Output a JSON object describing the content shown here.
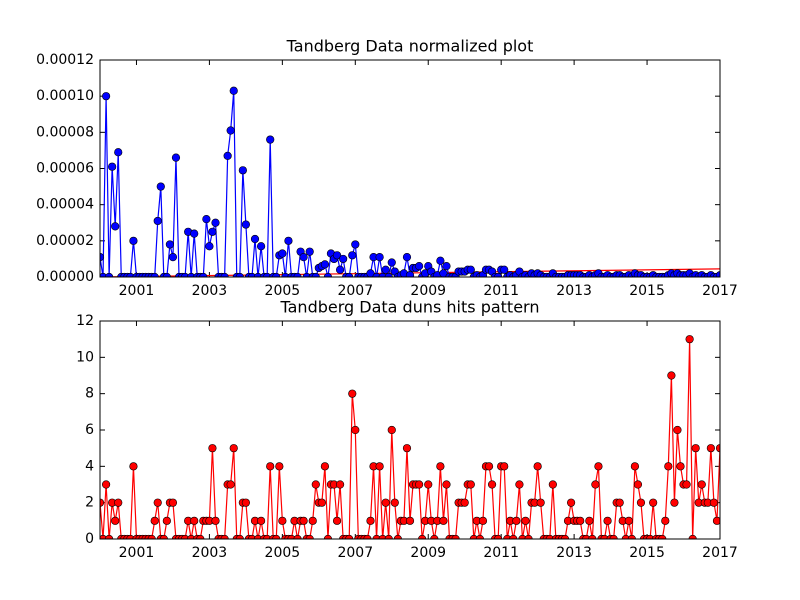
{
  "chart_data": [
    {
      "type": "line",
      "title": "Tandberg Data normalized plot",
      "x": [
        2000,
        2000.083,
        2000.167,
        2000.25,
        2000.333,
        2000.417,
        2000.5,
        2000.583,
        2000.667,
        2000.75,
        2000.833,
        2000.917,
        2001,
        2001.083,
        2001.167,
        2001.25,
        2001.333,
        2001.417,
        2001.5,
        2001.583,
        2001.667,
        2001.75,
        2001.833,
        2001.917,
        2002,
        2002.083,
        2002.167,
        2002.25,
        2002.333,
        2002.417,
        2002.5,
        2002.583,
        2002.667,
        2002.75,
        2002.833,
        2002.917,
        2003,
        2003.083,
        2003.167,
        2003.25,
        2003.333,
        2003.417,
        2003.5,
        2003.583,
        2003.667,
        2003.75,
        2003.833,
        2003.917,
        2004,
        2004.083,
        2004.167,
        2004.25,
        2004.333,
        2004.417,
        2004.5,
        2004.583,
        2004.667,
        2004.75,
        2004.833,
        2004.917,
        2005,
        2005.083,
        2005.167,
        2005.25,
        2005.333,
        2005.417,
        2005.5,
        2005.583,
        2005.667,
        2005.75,
        2005.833,
        2005.917,
        2006,
        2006.083,
        2006.167,
        2006.25,
        2006.333,
        2006.417,
        2006.5,
        2006.583,
        2006.667,
        2006.75,
        2006.833,
        2006.917,
        2007,
        2007.083,
        2007.167,
        2007.25,
        2007.333,
        2007.417,
        2007.5,
        2007.583,
        2007.667,
        2007.75,
        2007.833,
        2007.917,
        2008,
        2008.083,
        2008.167,
        2008.25,
        2008.333,
        2008.417,
        2008.5,
        2008.583,
        2008.667,
        2008.75,
        2008.833,
        2008.917,
        2009,
        2009.083,
        2009.167,
        2009.25,
        2009.333,
        2009.417,
        2009.5,
        2009.583,
        2009.667,
        2009.75,
        2009.833,
        2009.917,
        2010,
        2010.083,
        2010.167,
        2010.25,
        2010.333,
        2010.417,
        2010.5,
        2010.583,
        2010.667,
        2010.75,
        2010.833,
        2010.917,
        2011,
        2011.083,
        2011.167,
        2011.25,
        2011.333,
        2011.417,
        2011.5,
        2011.583,
        2011.667,
        2011.75,
        2011.833,
        2011.917,
        2012,
        2012.083,
        2012.167,
        2012.25,
        2012.333,
        2012.417,
        2012.5,
        2012.583,
        2012.667,
        2012.75,
        2012.833,
        2012.917,
        2013,
        2013.083,
        2013.167,
        2013.25,
        2013.333,
        2013.417,
        2013.5,
        2013.583,
        2013.667,
        2013.75,
        2013.833,
        2013.917,
        2014,
        2014.083,
        2014.167,
        2014.25,
        2014.333,
        2014.417,
        2014.5,
        2014.583,
        2014.667,
        2014.75,
        2014.833,
        2014.917,
        2015,
        2015.083,
        2015.167,
        2015.25,
        2015.333,
        2015.417,
        2015.5,
        2015.583,
        2015.667,
        2015.75,
        2015.833,
        2015.917,
        2016,
        2016.083,
        2016.167,
        2016.25,
        2016.333,
        2016.417,
        2016.5,
        2016.583,
        2016.667,
        2016.75,
        2016.833,
        2016.917,
        2017
      ],
      "series": [
        {
          "color": "#0000ff",
          "values": [
            1.1e-05,
            0,
            0.0001,
            0,
            6.1e-05,
            2.8e-05,
            6.9e-05,
            0,
            0,
            0,
            0,
            2e-05,
            0,
            0,
            0,
            0,
            0,
            0,
            0,
            3.1e-05,
            5e-05,
            0,
            0,
            1.8e-05,
            1.1e-05,
            6.6e-05,
            0,
            0,
            0,
            2.5e-05,
            0,
            2.4e-05,
            0,
            0,
            0,
            3.2e-05,
            1.7e-05,
            2.5e-05,
            3e-05,
            0,
            0,
            0,
            6.7e-05,
            8.1e-05,
            0.000103,
            0,
            0,
            5.9e-05,
            2.9e-05,
            0,
            0,
            2.1e-05,
            0,
            1.7e-05,
            0,
            0,
            7.6e-05,
            0,
            0,
            1.2e-05,
            1.3e-05,
            0,
            2e-05,
            0,
            0,
            0,
            1.4e-05,
            1.1e-05,
            0,
            1.4e-05,
            0,
            0,
            5e-06,
            6e-06,
            7e-06,
            0,
            1.3e-05,
            1e-05,
            1.2e-05,
            4e-06,
            1e-05,
            0,
            0,
            1.2e-05,
            1.8e-05,
            0,
            0,
            0,
            0,
            2e-06,
            1.1e-05,
            0,
            1.1e-05,
            0,
            4e-06,
            0,
            8e-06,
            3e-06,
            0,
            1e-06,
            2e-06,
            1.1e-05,
            1e-06,
            5e-06,
            5e-06,
            6e-06,
            0,
            2e-06,
            6e-06,
            3e-06,
            0,
            1e-06,
            9e-06,
            2e-06,
            6e-06,
            0,
            0,
            0,
            3e-06,
            3e-06,
            3e-06,
            4e-06,
            4e-06,
            0,
            1e-06,
            0,
            1e-06,
            4e-06,
            4e-06,
            3e-06,
            0,
            0,
            4e-06,
            4e-06,
            0,
            1e-06,
            0,
            1e-06,
            3e-06,
            0,
            1e-06,
            0,
            2e-06,
            1e-06,
            2e-06,
            1e-06,
            0,
            0,
            0,
            2e-06,
            0,
            0,
            0,
            0,
            1e-06,
            1e-06,
            1e-06,
            1e-06,
            1e-06,
            0,
            0,
            1e-06,
            0,
            1e-06,
            2e-06,
            0,
            0,
            1e-06,
            0,
            0,
            1e-06,
            1e-06,
            0,
            0,
            1e-06,
            0,
            2e-06,
            1e-06,
            1e-06,
            0,
            0,
            0,
            1e-06,
            0,
            0,
            0,
            0,
            1e-06,
            2e-06,
            1e-06,
            2e-06,
            1e-06,
            1e-06,
            1e-06,
            2e-06,
            0,
            1e-06,
            0,
            1e-06,
            0,
            0,
            1e-06,
            0,
            0,
            1e-06
          ]
        }
      ],
      "trend": {
        "color": "#ff0000",
        "x": [
          2000,
          2017
        ],
        "values": [
          0,
          4.5e-06
        ]
      },
      "xlim": [
        2000,
        2017
      ],
      "xticks": [
        2001,
        2003,
        2005,
        2007,
        2009,
        2011,
        2013,
        2015,
        2017
      ],
      "ylim": [
        0,
        0.00012
      ],
      "yticks": [
        {
          "value": 0,
          "label": "0.00000"
        },
        {
          "value": 2e-05,
          "label": "0.00002"
        },
        {
          "value": 4e-05,
          "label": "0.00004"
        },
        {
          "value": 6e-05,
          "label": "0.00006"
        },
        {
          "value": 8e-05,
          "label": "0.00008"
        },
        {
          "value": 0.0001,
          "label": "0.00010"
        },
        {
          "value": 0.00012,
          "label": "0.00012"
        }
      ]
    },
    {
      "type": "line",
      "title": "Tandberg Data duns hits pattern",
      "x": [
        2000,
        2000.083,
        2000.167,
        2000.25,
        2000.333,
        2000.417,
        2000.5,
        2000.583,
        2000.667,
        2000.75,
        2000.833,
        2000.917,
        2001,
        2001.083,
        2001.167,
        2001.25,
        2001.333,
        2001.417,
        2001.5,
        2001.583,
        2001.667,
        2001.75,
        2001.833,
        2001.917,
        2002,
        2002.083,
        2002.167,
        2002.25,
        2002.333,
        2002.417,
        2002.5,
        2002.583,
        2002.667,
        2002.75,
        2002.833,
        2002.917,
        2003,
        2003.083,
        2003.167,
        2003.25,
        2003.333,
        2003.417,
        2003.5,
        2003.583,
        2003.667,
        2003.75,
        2003.833,
        2003.917,
        2004,
        2004.083,
        2004.167,
        2004.25,
        2004.333,
        2004.417,
        2004.5,
        2004.583,
        2004.667,
        2004.75,
        2004.833,
        2004.917,
        2005,
        2005.083,
        2005.167,
        2005.25,
        2005.333,
        2005.417,
        2005.5,
        2005.583,
        2005.667,
        2005.75,
        2005.833,
        2005.917,
        2006,
        2006.083,
        2006.167,
        2006.25,
        2006.333,
        2006.417,
        2006.5,
        2006.583,
        2006.667,
        2006.75,
        2006.833,
        2006.917,
        2007,
        2007.083,
        2007.167,
        2007.25,
        2007.333,
        2007.417,
        2007.5,
        2007.583,
        2007.667,
        2007.75,
        2007.833,
        2007.917,
        2008,
        2008.083,
        2008.167,
        2008.25,
        2008.333,
        2008.417,
        2008.5,
        2008.583,
        2008.667,
        2008.75,
        2008.833,
        2008.917,
        2009,
        2009.083,
        2009.167,
        2009.25,
        2009.333,
        2009.417,
        2009.5,
        2009.583,
        2009.667,
        2009.75,
        2009.833,
        2009.917,
        2010,
        2010.083,
        2010.167,
        2010.25,
        2010.333,
        2010.417,
        2010.5,
        2010.583,
        2010.667,
        2010.75,
        2010.833,
        2010.917,
        2011,
        2011.083,
        2011.167,
        2011.25,
        2011.333,
        2011.417,
        2011.5,
        2011.583,
        2011.667,
        2011.75,
        2011.833,
        2011.917,
        2012,
        2012.083,
        2012.167,
        2012.25,
        2012.333,
        2012.417,
        2012.5,
        2012.583,
        2012.667,
        2012.75,
        2012.833,
        2012.917,
        2013,
        2013.083,
        2013.167,
        2013.25,
        2013.333,
        2013.417,
        2013.5,
        2013.583,
        2013.667,
        2013.75,
        2013.833,
        2013.917,
        2014,
        2014.083,
        2014.167,
        2014.25,
        2014.333,
        2014.417,
        2014.5,
        2014.583,
        2014.667,
        2014.75,
        2014.833,
        2014.917,
        2015,
        2015.083,
        2015.167,
        2015.25,
        2015.333,
        2015.417,
        2015.5,
        2015.583,
        2015.667,
        2015.75,
        2015.833,
        2015.917,
        2016,
        2016.083,
        2016.167,
        2016.25,
        2016.333,
        2016.417,
        2016.5,
        2016.583,
        2016.667,
        2016.75,
        2016.833,
        2016.917,
        2017
      ],
      "series": [
        {
          "color": "#ff0000",
          "values": [
            2,
            0,
            3,
            0,
            2,
            1,
            2,
            0,
            0,
            0,
            0,
            4,
            0,
            0,
            0,
            0,
            0,
            0,
            1,
            2,
            0,
            0,
            1,
            2,
            2,
            0,
            0,
            0,
            0,
            1,
            0,
            1,
            0,
            0,
            1,
            1,
            1,
            5,
            1,
            0,
            0,
            0,
            3,
            3,
            5,
            0,
            0,
            2,
            2,
            0,
            0,
            1,
            0,
            1,
            0,
            0,
            4,
            0,
            0,
            4,
            1,
            0,
            0,
            0,
            1,
            0,
            1,
            1,
            0,
            0,
            1,
            3,
            2,
            2,
            4,
            0,
            3,
            3,
            1,
            3,
            0,
            0,
            0,
            8,
            6,
            0,
            0,
            0,
            0,
            1,
            4,
            0,
            4,
            0,
            2,
            0,
            6,
            2,
            0,
            1,
            1,
            5,
            1,
            3,
            3,
            3,
            0,
            1,
            3,
            1,
            0,
            1,
            4,
            1,
            3,
            0,
            0,
            0,
            2,
            2,
            2,
            3,
            3,
            0,
            1,
            0,
            1,
            4,
            4,
            3,
            0,
            0,
            4,
            4,
            0,
            1,
            0,
            1,
            3,
            0,
            1,
            0,
            2,
            2,
            4,
            2,
            0,
            0,
            0,
            3,
            0,
            0,
            0,
            0,
            1,
            2,
            1,
            1,
            1,
            0,
            0,
            1,
            0,
            3,
            4,
            0,
            0,
            1,
            0,
            0,
            2,
            2,
            1,
            0,
            1,
            0,
            4,
            3,
            2,
            0,
            0,
            0,
            2,
            0,
            0,
            0,
            1,
            4,
            9,
            2,
            6,
            4,
            3,
            3,
            11,
            0,
            5,
            2,
            3,
            2,
            2,
            5,
            2,
            1,
            5
          ]
        }
      ],
      "xlim": [
        2000,
        2017
      ],
      "xticks": [
        2001,
        2003,
        2005,
        2007,
        2009,
        2011,
        2013,
        2015,
        2017
      ],
      "ylim": [
        0,
        12
      ],
      "yticks": [
        0,
        2,
        4,
        6,
        8,
        10,
        12
      ]
    }
  ]
}
